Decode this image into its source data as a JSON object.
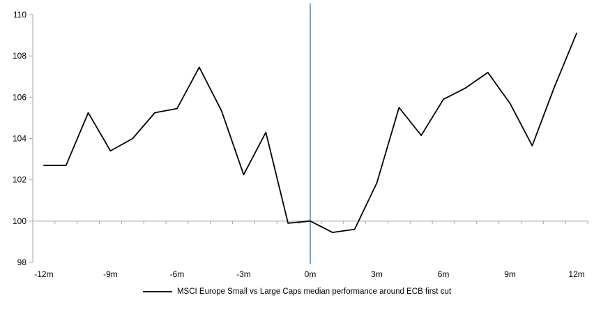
{
  "chart_data": {
    "type": "line",
    "title": "",
    "xlabel": "",
    "ylabel": "",
    "x": [
      -12,
      -11,
      -10,
      -9,
      -8,
      -7,
      -6,
      -5,
      -4,
      -3,
      -2,
      -1,
      0,
      1,
      2,
      3,
      4,
      5,
      6,
      7,
      8,
      9,
      10,
      11,
      12
    ],
    "series": [
      {
        "name": "MSCI Europe Small vs Large Caps median performance around ECB first cut",
        "color": "#000000",
        "values": [
          102.7,
          102.7,
          105.25,
          103.4,
          104.0,
          105.25,
          105.45,
          107.45,
          105.35,
          102.25,
          104.3,
          99.9,
          100.0,
          99.45,
          99.6,
          101.85,
          105.5,
          104.15,
          105.9,
          106.45,
          107.2,
          105.7,
          103.65,
          106.5,
          109.1
        ]
      }
    ],
    "ylim": [
      98,
      110
    ],
    "yticks": [
      98,
      100,
      102,
      104,
      106,
      108,
      110
    ],
    "xtick_months": [
      -12,
      -9,
      -6,
      -3,
      0,
      3,
      6,
      9,
      12
    ],
    "xtick_labels": [
      "-12m",
      "-9m",
      "-6m",
      "-3m",
      "0m",
      "3m",
      "6m",
      "9m",
      "12m"
    ],
    "event_line": {
      "x": 0,
      "color": "#73A3CB"
    },
    "baseline_value": 100,
    "axis_color": "#A6A6A6",
    "grid": "off",
    "legend_position": "bottom-center"
  }
}
